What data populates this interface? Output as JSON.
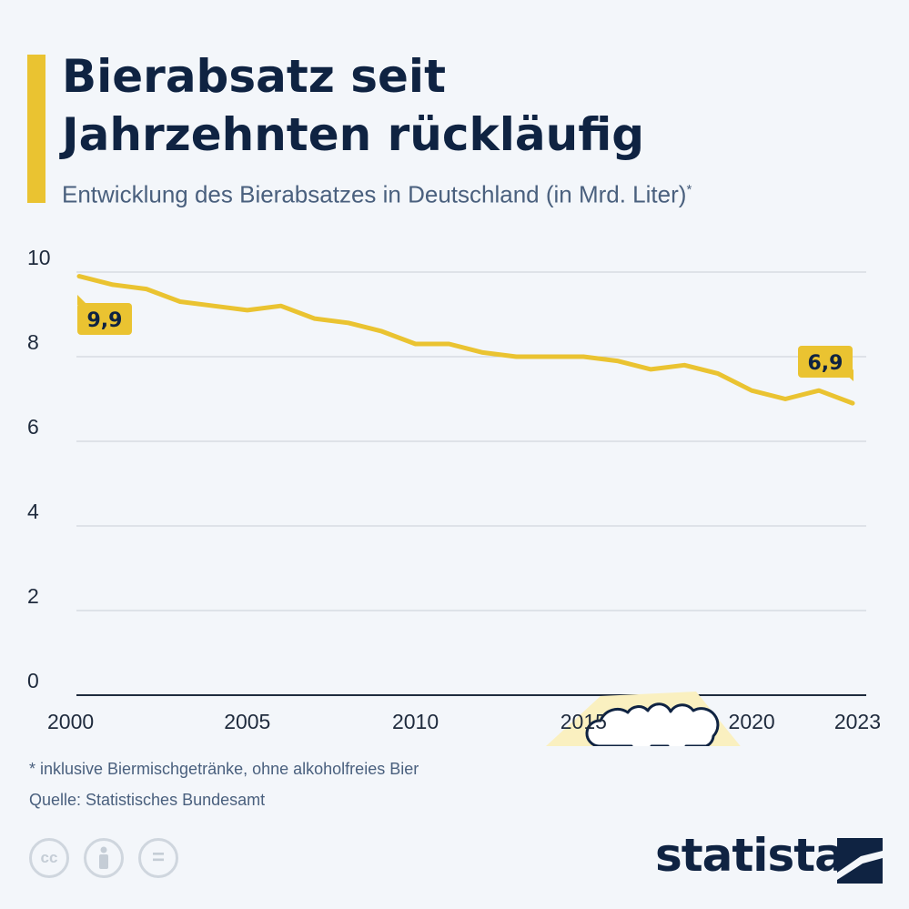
{
  "header": {
    "title_line1": "Bierabsatz seit",
    "title_line2": "Jahrzehnten rückläufig",
    "subtitle": "Entwicklung des Bierabsatzes in Deutschland (in Mrd. Liter)",
    "subtitle_mark": "*"
  },
  "chart_data": {
    "type": "line",
    "title": "Bierabsatz seit Jahrzehnten rückläufig",
    "subtitle": "Entwicklung des Bierabsatzes in Deutschland (in Mrd. Liter)",
    "x": [
      2000,
      2001,
      2002,
      2003,
      2004,
      2005,
      2006,
      2007,
      2008,
      2009,
      2010,
      2011,
      2012,
      2013,
      2014,
      2015,
      2016,
      2017,
      2018,
      2019,
      2020,
      2021,
      2022,
      2023
    ],
    "series": [
      {
        "values": [
          9.9,
          9.7,
          9.6,
          9.3,
          9.2,
          9.1,
          9.2,
          8.9,
          8.8,
          8.6,
          8.3,
          8.3,
          8.1,
          8.0,
          8.0,
          8.0,
          7.9,
          7.7,
          7.8,
          7.6,
          7.2,
          7.0,
          7.2,
          6.9
        ]
      }
    ],
    "ylim": [
      0,
      10
    ],
    "y_ticks": [
      "0",
      "2",
      "4",
      "6",
      "8",
      "10"
    ],
    "x_ticks": [
      "2000",
      "2005",
      "2010",
      "2015",
      "2020",
      "2023"
    ],
    "annotations": [
      {
        "x": 2000,
        "text": "9,9"
      },
      {
        "x": 2023,
        "text": "6,9"
      }
    ],
    "grid": true,
    "line_color": "#eac331"
  },
  "footnote": "* inklusive Biermischgetränke, ohne alkoholfreies Bier",
  "source": "Quelle: Statistisches Bundesamt",
  "license_icons": [
    "cc-icon",
    "attribution-icon",
    "no-derivatives-icon"
  ],
  "license_glyphs": {
    "cc": "cc",
    "nd": "="
  },
  "brand": {
    "name": "statista",
    "color": "#0f2342"
  },
  "colors": {
    "accent": "#eac331",
    "text": "#0f2342",
    "muted": "#4a607e",
    "grid": "#c9cfd6",
    "beer_bg": "#faf0c0"
  }
}
